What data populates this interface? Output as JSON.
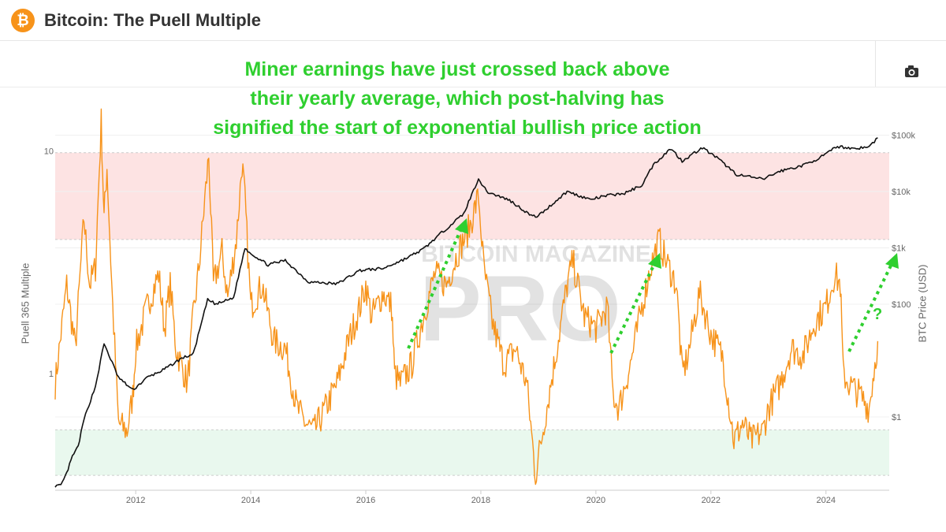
{
  "header": {
    "title": "Bitcoin: The Puell Multiple",
    "logo_glyph": "₿",
    "logo_color": "#f7931a"
  },
  "toolbar": {
    "camera_icon": "camera-icon"
  },
  "annotation": {
    "lines": [
      "Miner earnings have just crossed back above",
      "their yearly average, which post-halving has",
      "signified the start of exponential bullish price action"
    ],
    "question_mark": "?",
    "color": "#2fcf2f"
  },
  "watermark": {
    "top_text": "BITCOIN MAGAZINE",
    "main_text": "PRO"
  },
  "chart_data": {
    "type": "line",
    "xlabel": "",
    "x_ticks": [
      "2012",
      "2014",
      "2016",
      "2018",
      "2020",
      "2022",
      "2024"
    ],
    "xlim": [
      2010.6,
      2025.1
    ],
    "y_left": {
      "label": "Puell 365 Multiple",
      "scale": "log",
      "ticks": [
        "1",
        "10"
      ],
      "tick_values": [
        1,
        10
      ],
      "ylim": [
        0.3,
        14
      ]
    },
    "y_right": {
      "label": "BTC Price (USD)",
      "scale": "log",
      "ticks": [
        "$1",
        "$100",
        "$1k",
        "$10k",
        "$100k"
      ],
      "tick_values": [
        1,
        100,
        1000,
        10000,
        100000
      ],
      "ylim": [
        0.05,
        200000
      ]
    },
    "bands": [
      {
        "name": "high",
        "from": 4,
        "to": 9.8,
        "color": "#fde3e3"
      },
      {
        "name": "low",
        "from": 0.35,
        "to": 0.56,
        "color": "#e9f8ee"
      }
    ],
    "series": [
      {
        "name": "Puell 365 Multiple",
        "axis": "left",
        "color": "#f7931a",
        "x": [
          2010.6,
          2010.8,
          2010.95,
          2011.1,
          2011.2,
          2011.3,
          2011.4,
          2011.45,
          2011.5,
          2011.6,
          2011.7,
          2011.85,
          2011.95,
          2012.0,
          2012.2,
          2012.4,
          2012.5,
          2012.6,
          2012.7,
          2012.9,
          2013.0,
          2013.1,
          2013.2,
          2013.27,
          2013.35,
          2013.5,
          2013.6,
          2013.75,
          2013.85,
          2013.9,
          2014.0,
          2014.2,
          2014.4,
          2014.6,
          2014.8,
          2014.95,
          2015.1,
          2015.3,
          2015.5,
          2015.7,
          2015.9,
          2016.0,
          2016.1,
          2016.3,
          2016.45,
          2016.5,
          2016.6,
          2016.8,
          2017.0,
          2017.2,
          2017.4,
          2017.6,
          2017.8,
          2017.96,
          2018.05,
          2018.2,
          2018.4,
          2018.6,
          2018.8,
          2018.95,
          2019.1,
          2019.3,
          2019.5,
          2019.6,
          2019.8,
          2020.0,
          2020.2,
          2020.3,
          2020.4,
          2020.6,
          2020.8,
          2020.95,
          2021.1,
          2021.2,
          2021.4,
          2021.5,
          2021.6,
          2021.8,
          2022.0,
          2022.2,
          2022.4,
          2022.55,
          2022.7,
          2022.9,
          2023.0,
          2023.2,
          2023.4,
          2023.6,
          2023.8,
          2024.0,
          2024.15,
          2024.25,
          2024.3,
          2024.4,
          2024.6,
          2024.75,
          2024.9
        ],
        "values": [
          0.9,
          2.5,
          1.3,
          5.0,
          2.5,
          3.0,
          13.5,
          5.0,
          8.5,
          2.0,
          0.6,
          0.55,
          0.8,
          1.3,
          2.0,
          2.8,
          1.6,
          2.5,
          1.3,
          0.9,
          1.8,
          3.0,
          6.0,
          9.5,
          2.5,
          3.5,
          2.2,
          4.0,
          8.8,
          6.0,
          2.0,
          2.5,
          1.4,
          1.3,
          0.7,
          0.6,
          0.55,
          0.7,
          0.9,
          1.4,
          2.0,
          2.5,
          1.8,
          2.3,
          2.0,
          1.0,
          0.9,
          1.1,
          1.8,
          2.8,
          2.5,
          3.5,
          4.5,
          6.3,
          3.0,
          1.7,
          1.1,
          1.3,
          0.9,
          0.35,
          0.6,
          1.2,
          2.5,
          3.2,
          1.8,
          1.6,
          2.0,
          0.8,
          0.7,
          1.1,
          2.0,
          3.0,
          4.0,
          3.3,
          2.5,
          1.0,
          1.2,
          2.3,
          1.5,
          1.2,
          0.5,
          0.6,
          0.5,
          0.55,
          0.7,
          0.9,
          1.3,
          1.2,
          1.7,
          2.0,
          2.8,
          2.5,
          1.0,
          0.9,
          0.8,
          0.7,
          1.4
        ]
      },
      {
        "name": "BTC Price (USD)",
        "axis": "right",
        "color": "#111111",
        "x": [
          2010.6,
          2010.7,
          2010.8,
          2010.9,
          2011.0,
          2011.1,
          2011.3,
          2011.45,
          2011.7,
          2011.95,
          2012.2,
          2012.5,
          2012.8,
          2013.0,
          2013.25,
          2013.4,
          2013.7,
          2013.9,
          2014.0,
          2014.3,
          2014.6,
          2015.0,
          2015.5,
          2015.9,
          2016.3,
          2016.7,
          2017.0,
          2017.4,
          2017.7,
          2017.96,
          2018.1,
          2018.5,
          2018.9,
          2019.0,
          2019.5,
          2019.9,
          2020.2,
          2020.5,
          2020.8,
          2021.0,
          2021.3,
          2021.5,
          2021.85,
          2022.1,
          2022.45,
          2022.9,
          2023.2,
          2023.6,
          2023.9,
          2024.2,
          2024.5,
          2024.75,
          2024.9
        ],
        "values": [
          0.06,
          0.06,
          0.1,
          0.2,
          0.3,
          0.9,
          3.5,
          20,
          5,
          3,
          5,
          7,
          11,
          13,
          120,
          100,
          130,
          1000,
          800,
          500,
          600,
          250,
          230,
          400,
          430,
          650,
          950,
          2200,
          4000,
          17000,
          10000,
          7000,
          3600,
          3700,
          10000,
          7200,
          8500,
          9300,
          13000,
          30000,
          58000,
          35000,
          60000,
          40000,
          20000,
          16500,
          23000,
          29000,
          40000,
          63000,
          58000,
          62000,
          90000
        ]
      }
    ]
  }
}
